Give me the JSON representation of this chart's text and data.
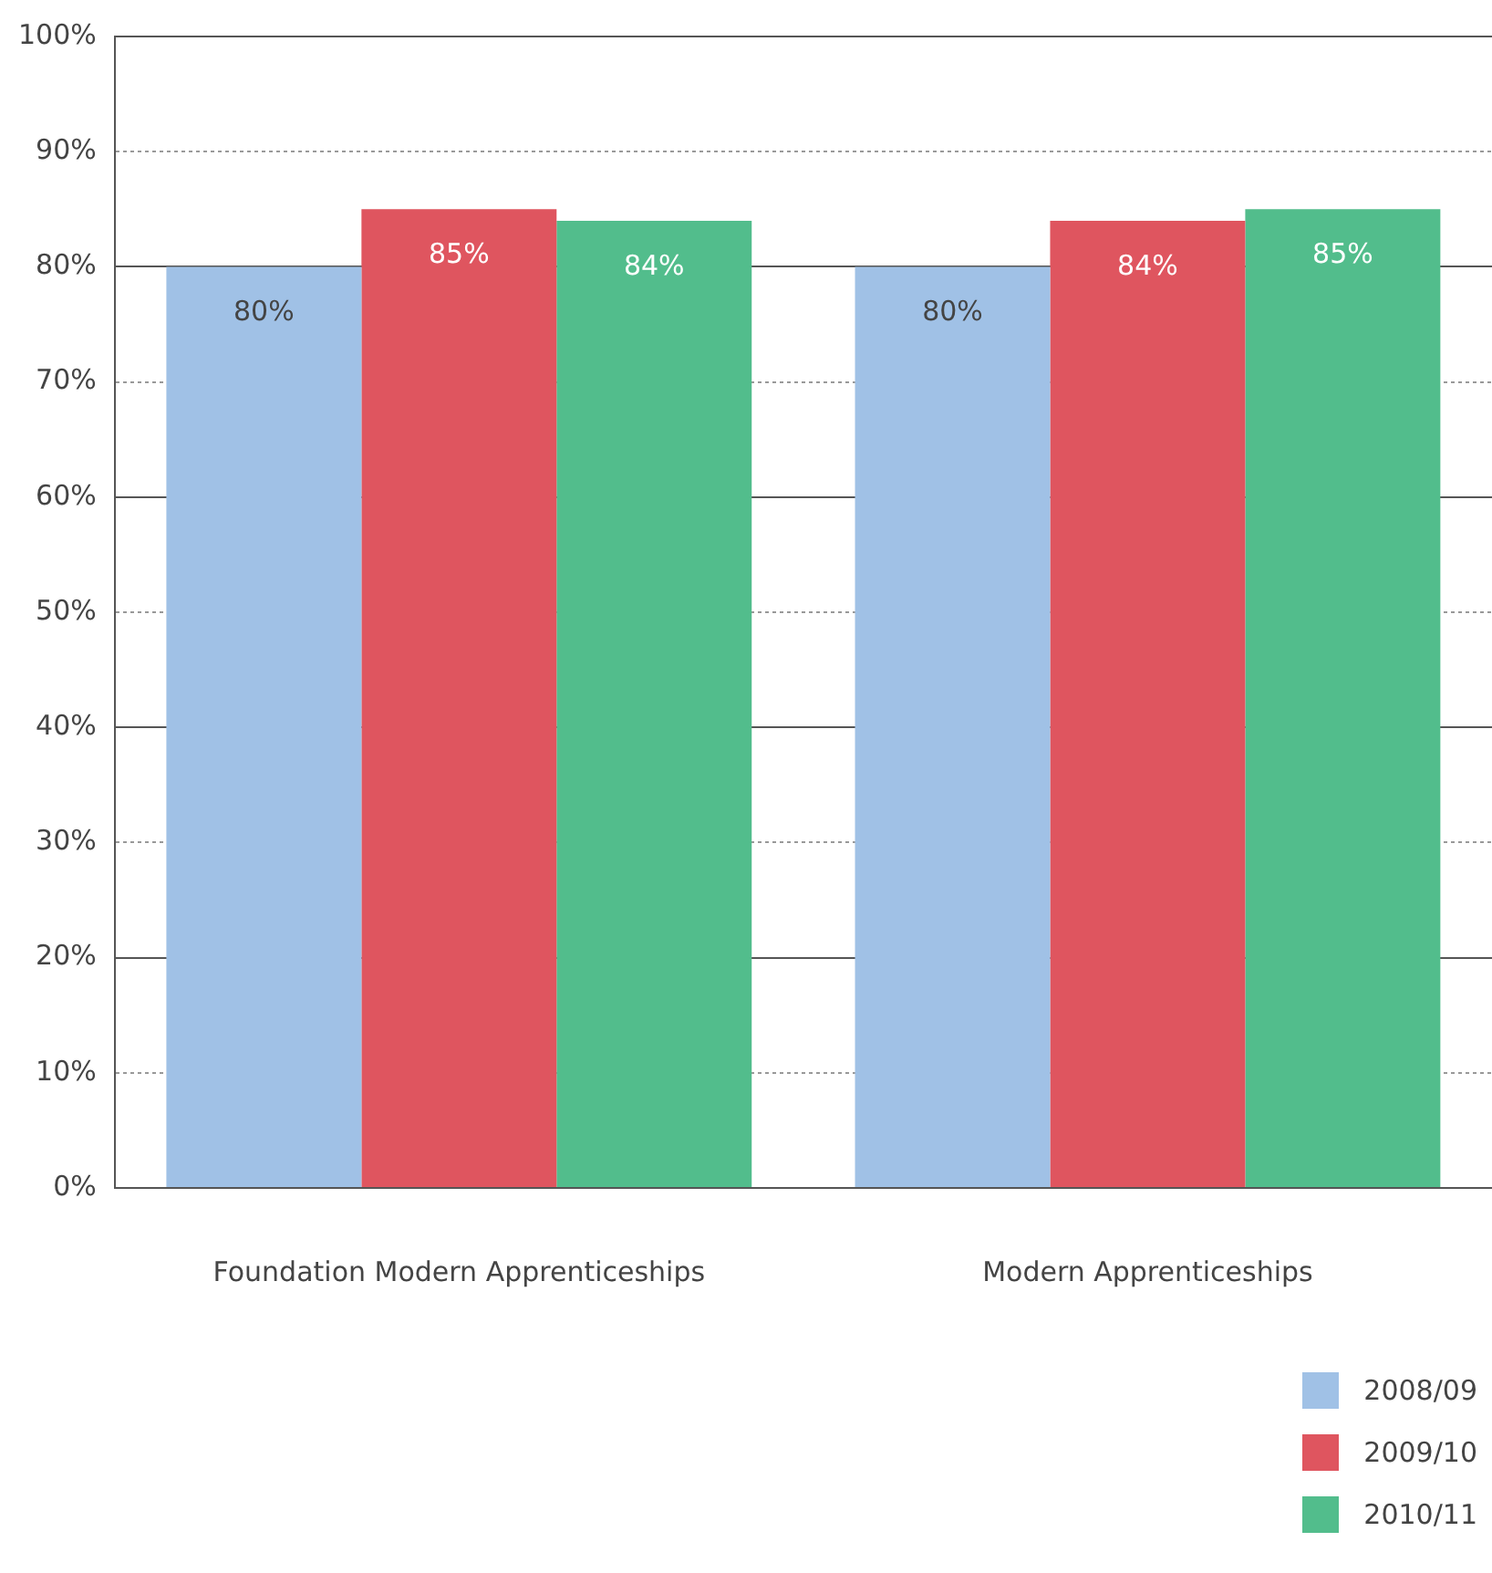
{
  "chart_data": {
    "type": "bar",
    "categories": [
      "Foundation Modern Apprenticeships",
      "Modern Apprenticeships"
    ],
    "series": [
      {
        "name": "2008/09",
        "color": "#a0c1e6",
        "values": [
          80,
          80
        ],
        "value_labels": [
          "80%",
          "80%"
        ]
      },
      {
        "name": "2009/10",
        "color": "#df555f",
        "values": [
          85,
          84
        ],
        "value_labels": [
          "85%",
          "84%"
        ]
      },
      {
        "name": "2010/11",
        "color": "#52bd8c",
        "values": [
          84,
          85
        ],
        "value_labels": [
          "84%",
          "85%"
        ]
      }
    ],
    "ylim": [
      0,
      100
    ],
    "yticks": [
      {
        "value": 0,
        "label": "0%"
      },
      {
        "value": 10,
        "label": "10%"
      },
      {
        "value": 20,
        "label": "20%"
      },
      {
        "value": 30,
        "label": "30%"
      },
      {
        "value": 40,
        "label": "40%"
      },
      {
        "value": 50,
        "label": "50%"
      },
      {
        "value": 60,
        "label": "60%"
      },
      {
        "value": 70,
        "label": "70%"
      },
      {
        "value": 80,
        "label": "80%"
      },
      {
        "value": 90,
        "label": "90%"
      },
      {
        "value": 100,
        "label": "100%"
      }
    ],
    "grid": "y",
    "legend": "bottom right"
  }
}
